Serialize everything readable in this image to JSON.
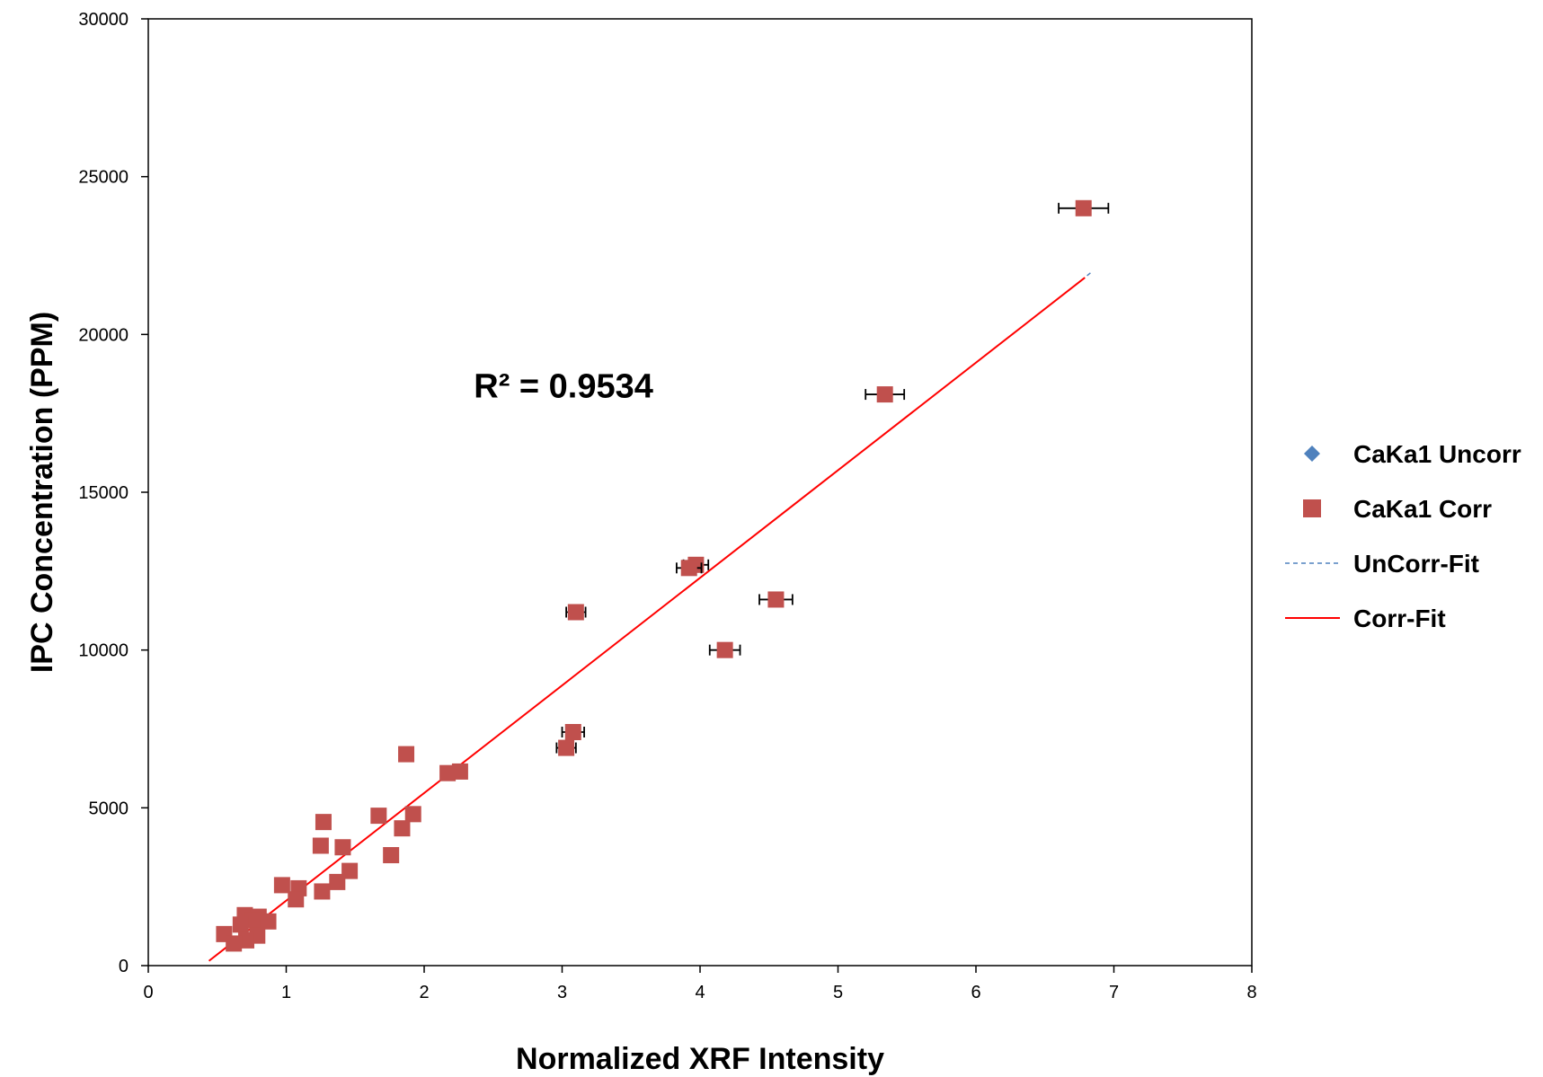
{
  "chart_data": {
    "type": "scatter",
    "title": "",
    "xlabel": "Normalized XRF Intensity",
    "ylabel": "IPC Concentration (PPM)",
    "xlim": [
      0,
      8
    ],
    "ylim": [
      0,
      30000
    ],
    "x_ticks": [
      "0",
      "1",
      "2",
      "3",
      "4",
      "5",
      "6",
      "7",
      "8"
    ],
    "y_ticks": [
      "0",
      "5000",
      "10000",
      "15000",
      "20000",
      "25000",
      "30000"
    ],
    "grid": false,
    "legend_position": "right",
    "annotation": "R² = 0.9534",
    "colors": {
      "uncorr": "#4F81BD",
      "corr": "#C0504D",
      "uncorr_fit": "#4F81BD",
      "corr_fit": "#FF0000"
    },
    "series": [
      {
        "name": "CaKa1 Uncorr",
        "marker": "diamond",
        "points": []
      },
      {
        "name": "CaKa1 Corr",
        "marker": "square",
        "points": [
          {
            "x": 6.78,
            "y": 24000,
            "xerr": 0.18
          },
          {
            "x": 5.34,
            "y": 18100,
            "xerr": 0.14
          },
          {
            "x": 3.97,
            "y": 12700,
            "xerr": 0.09
          },
          {
            "x": 3.92,
            "y": 12600,
            "xerr": 0.09
          },
          {
            "x": 4.55,
            "y": 11600,
            "xerr": 0.12
          },
          {
            "x": 3.1,
            "y": 11200,
            "xerr": 0.07
          },
          {
            "x": 4.18,
            "y": 10000,
            "xerr": 0.11
          },
          {
            "x": 3.08,
            "y": 7400,
            "xerr": 0.08
          },
          {
            "x": 3.03,
            "y": 6900,
            "xerr": 0.07
          },
          {
            "x": 1.87,
            "y": 6700
          },
          {
            "x": 2.17,
            "y": 6100
          },
          {
            "x": 2.26,
            "y": 6150
          },
          {
            "x": 1.92,
            "y": 4800
          },
          {
            "x": 1.67,
            "y": 4750
          },
          {
            "x": 1.27,
            "y": 4550
          },
          {
            "x": 1.84,
            "y": 4350
          },
          {
            "x": 1.25,
            "y": 3800
          },
          {
            "x": 1.41,
            "y": 3750
          },
          {
            "x": 1.76,
            "y": 3500
          },
          {
            "x": 1.46,
            "y": 3000
          },
          {
            "x": 1.37,
            "y": 2650
          },
          {
            "x": 0.97,
            "y": 2550
          },
          {
            "x": 1.09,
            "y": 2450
          },
          {
            "x": 1.26,
            "y": 2350
          },
          {
            "x": 1.07,
            "y": 2100
          },
          {
            "x": 0.7,
            "y": 1600
          },
          {
            "x": 0.8,
            "y": 1550
          },
          {
            "x": 0.76,
            "y": 1450
          },
          {
            "x": 0.87,
            "y": 1400
          },
          {
            "x": 0.67,
            "y": 1300
          },
          {
            "x": 0.55,
            "y": 1000
          },
          {
            "x": 0.79,
            "y": 950
          },
          {
            "x": 0.71,
            "y": 800
          },
          {
            "x": 0.62,
            "y": 700
          }
        ]
      },
      {
        "name": "UnCorr-Fit",
        "style": "dashed",
        "points": [
          {
            "x": 6.76,
            "y": 21700
          },
          {
            "x": 6.83,
            "y": 21950
          }
        ]
      },
      {
        "name": "Corr-Fit",
        "style": "solid",
        "points": [
          {
            "x": 0.44,
            "y": 150
          },
          {
            "x": 6.79,
            "y": 21800
          }
        ]
      }
    ]
  }
}
